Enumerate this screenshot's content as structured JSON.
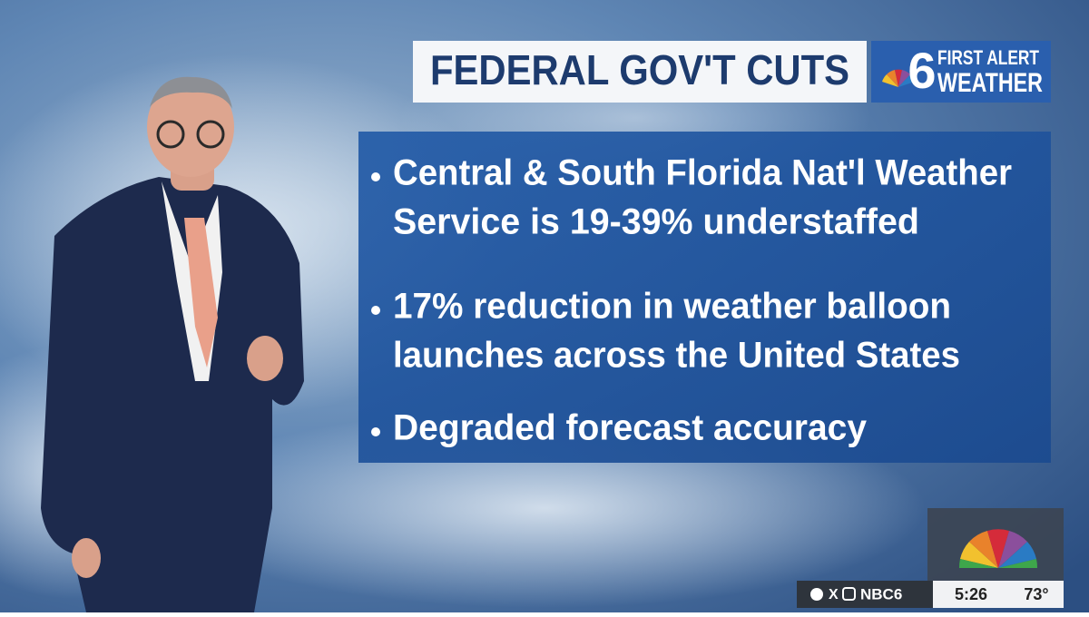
{
  "header": {
    "title": "FEDERAL GOV'T CUTS"
  },
  "logo": {
    "number": "6",
    "line1": "FIRST ALERT",
    "line2": "WEATHER"
  },
  "bullets": [
    [
      "Central & South Florida Nat'l Weather",
      "Service is 19-39% understaffed"
    ],
    [
      "17% reduction in weather balloon",
      "launches across the United States"
    ],
    [
      "Degraded forecast accuracy"
    ]
  ],
  "bug": {
    "handle": "NBC6",
    "time": "5:26",
    "temperature": "73°"
  }
}
